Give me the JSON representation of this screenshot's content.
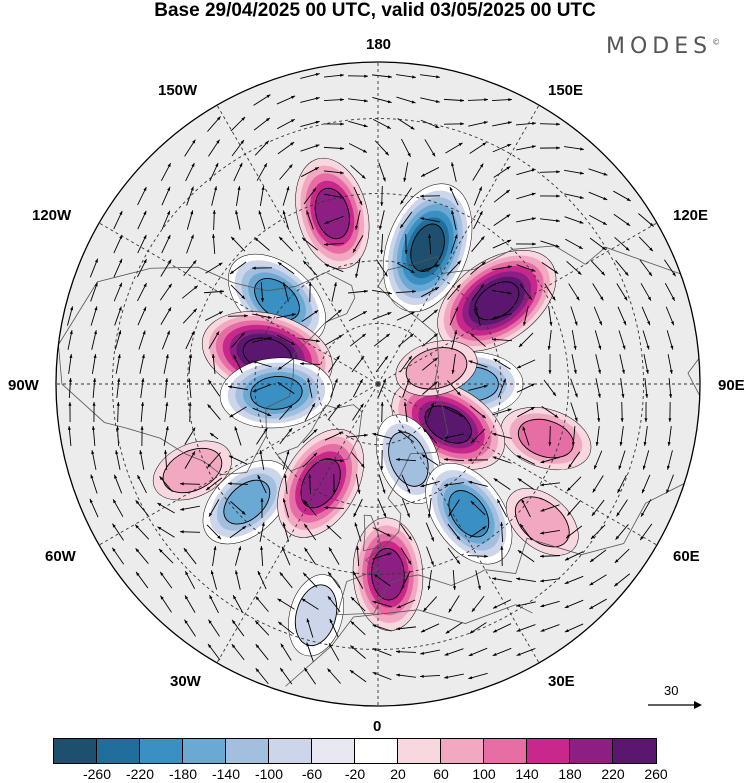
{
  "title": "Base 29/04/2025 00 UTC, valid 03/05/2025 00 UTC",
  "brand": {
    "name": "MODES",
    "mark": "©"
  },
  "longitude_labels": {
    "top": "180",
    "bottom": "0",
    "left": "90W",
    "right": "90E",
    "upper_left_1": "150W",
    "upper_left_2": "120W",
    "upper_right_1": "150E",
    "upper_right_2": "120E",
    "lower_left_1": "60W",
    "lower_left_2": "30W",
    "lower_right_1": "60E",
    "lower_right_2": "30E"
  },
  "map": {
    "projection": "north polar stereographic",
    "background_color": "#ececec",
    "graticule_style": "dashed",
    "anomaly_field": [
      {
        "lon": 160,
        "lat": 55,
        "value": -260
      },
      {
        "lon": -165,
        "lat": 48,
        "value": 180
      },
      {
        "lon": 125,
        "lat": 55,
        "value": 260
      },
      {
        "lon": -130,
        "lat": 58,
        "value": -180
      },
      {
        "lon": -105,
        "lat": 62,
        "value": 260
      },
      {
        "lon": -85,
        "lat": 65,
        "value": -180
      },
      {
        "lon": 90,
        "lat": 67,
        "value": -140
      },
      {
        "lon": 72,
        "lat": 48,
        "value": 100
      },
      {
        "lon": 60,
        "lat": 70,
        "value": 220
      },
      {
        "lon": -65,
        "lat": 42,
        "value": 60
      },
      {
        "lon": -48,
        "lat": 48,
        "value": -140
      },
      {
        "lon": -30,
        "lat": 62,
        "value": 200
      },
      {
        "lon": 22,
        "lat": 70,
        "value": -100
      },
      {
        "lon": 35,
        "lat": 52,
        "value": -180
      },
      {
        "lon": 3,
        "lat": 45,
        "value": 180
      },
      {
        "lon": 50,
        "lat": 40,
        "value": 60
      },
      {
        "lon": 105,
        "lat": 75,
        "value": 60
      },
      {
        "lon": -15,
        "lat": 35,
        "value": -60
      }
    ]
  },
  "wind_vector": {
    "reference_label": "30"
  },
  "colorbar": {
    "colors": [
      "#1e4f6f",
      "#1f6e9c",
      "#3a8fc3",
      "#6aa9d4",
      "#a3bfdf",
      "#cdd5ea",
      "#e8e8f3",
      "#ffffff",
      "#f8d7df",
      "#f2a8c0",
      "#e66ea5",
      "#c8288c",
      "#8e1f82",
      "#5b1670"
    ],
    "tick_labels": [
      "-260",
      "-220",
      "-180",
      "-140",
      "-100",
      "-60",
      "-20",
      "20",
      "60",
      "100",
      "140",
      "180",
      "220",
      "260"
    ]
  }
}
